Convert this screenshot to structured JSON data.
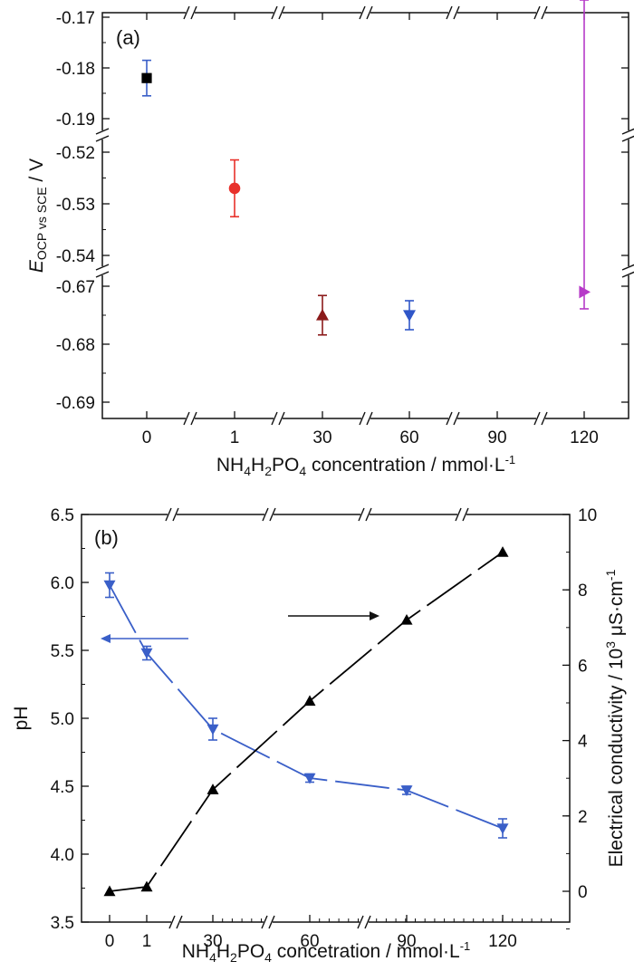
{
  "chart_data": [
    {
      "type": "scatter",
      "panel_label": "(a)",
      "ylabel": {
        "main": "E",
        "sub": "OCP vs SCE",
        "unit": " / V"
      },
      "xlabel": {
        "parts": [
          "NH",
          "4",
          "H",
          "2",
          "PO",
          "4",
          " concentration / mmol·L",
          "-1"
        ]
      },
      "categories": [
        "0",
        "1",
        "30",
        "60",
        "90",
        "120"
      ],
      "y_segments": [
        {
          "range": [
            -0.19,
            -0.17
          ],
          "ticks": [
            "-0.17",
            "-0.18",
            "-0.19"
          ]
        },
        {
          "range": [
            -0.54,
            -0.52
          ],
          "ticks": [
            "-0.52",
            "-0.53",
            "-0.54"
          ]
        },
        {
          "range": [
            -0.69,
            -0.67
          ],
          "ticks": [
            "-0.67",
            "-0.68",
            "-0.69"
          ]
        }
      ],
      "points": [
        {
          "category": "0",
          "y": -0.182,
          "err": 0.0035,
          "marker": "square",
          "color": "#000000",
          "error_color": "#3a5fc8"
        },
        {
          "category": "1",
          "y": -0.527,
          "err": 0.0055,
          "marker": "circle",
          "color": "#e8302a",
          "error_color": "#e8302a"
        },
        {
          "category": "30",
          "y": -0.675,
          "err": 0.0034,
          "marker": "triangle-up",
          "color": "#8b1a1a",
          "error_color": "#8b1a1a"
        },
        {
          "category": "60",
          "y": -0.675,
          "err": 0.0025,
          "marker": "triangle-down",
          "color": "#2f56c8",
          "error_color": "#2f56c8"
        },
        {
          "category": "120",
          "y": -0.671,
          "err": 0.0029,
          "marker": "triangle-right",
          "color": "#b63ac8",
          "error_color": "#b63ac8"
        }
      ]
    },
    {
      "type": "line",
      "panel_label": "(b)",
      "ylabel_left": "pH",
      "ylabel_right": {
        "text": "Electrical conductivity  /  10",
        "sup": "3",
        "tail": " μS·cm",
        "sup2": "-1"
      },
      "xlabel": {
        "parts": [
          "NH",
          "4",
          "H",
          "2",
          "PO",
          "4",
          "  concetration / mmol·L",
          "-1"
        ]
      },
      "x_ticks": [
        "0",
        "1",
        "30",
        "60",
        "90",
        "120"
      ],
      "y_left": {
        "range": [
          3.5,
          6.5
        ],
        "ticks": [
          "3.5",
          "4.0",
          "4.5",
          "5.0",
          "5.5",
          "6.0",
          "6.5"
        ]
      },
      "y_right": {
        "range": [
          -1,
          10
        ],
        "ticks": [
          "0",
          "2",
          "4",
          "6",
          "8",
          "10"
        ]
      },
      "series": [
        {
          "axis": "left",
          "color": "#3a5fc8",
          "marker": "triangle-down",
          "points": [
            {
              "x": "0",
              "y": 5.98,
              "err": 0.09
            },
            {
              "x": "1",
              "y": 5.48,
              "err": 0.05
            },
            {
              "x": "30",
              "y": 4.92,
              "err": 0.08
            },
            {
              "x": "60",
              "y": 4.56,
              "err": 0.03
            },
            {
              "x": "90",
              "y": 4.47,
              "err": 0.03
            },
            {
              "x": "120",
              "y": 4.19,
              "err": 0.07
            }
          ]
        },
        {
          "axis": "right",
          "color": "#000000",
          "marker": "triangle-up",
          "points": [
            {
              "x": "0",
              "y": 0.0
            },
            {
              "x": "1",
              "y": 0.12
            },
            {
              "x": "30",
              "y": 2.7
            },
            {
              "x": "60",
              "y": 5.05
            },
            {
              "x": "90",
              "y": 7.2
            },
            {
              "x": "120",
              "y": 9.0
            }
          ]
        }
      ]
    }
  ]
}
